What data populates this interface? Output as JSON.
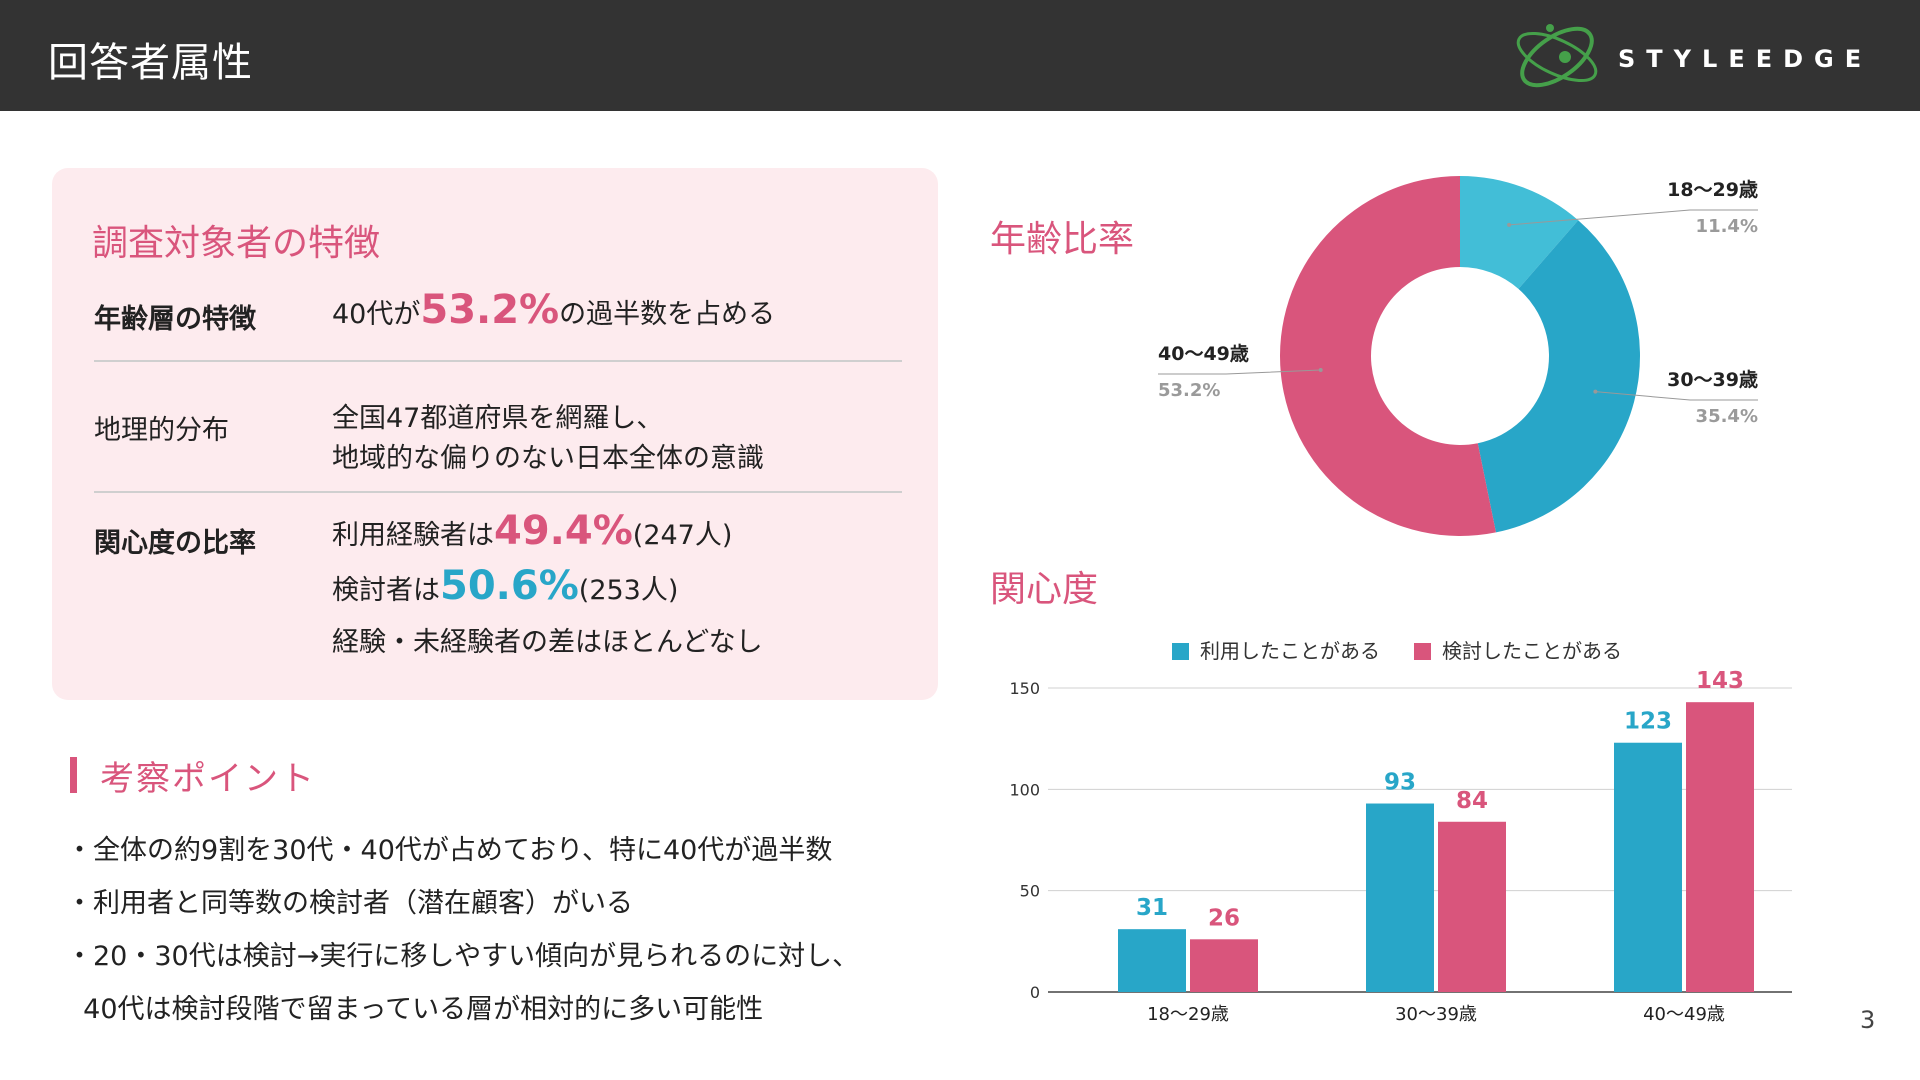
{
  "header": {
    "title": "回答者属性",
    "brand": "STYLEEDGE"
  },
  "card": {
    "title": "調査対象者の特徴",
    "rows": [
      {
        "label": "年齢層の特徴",
        "pre": "40代が",
        "highlight": "53.2%",
        "post": "の過半数を占める"
      },
      {
        "label": "地理的分布",
        "line1": "全国47都道府県を網羅し、",
        "line2": "地域的な偏りのない日本全体の意識"
      },
      {
        "label": "関心度の比率",
        "l1_pre": "利用経験者は",
        "l1_highlight": "49.4%",
        "l1_post": "(247人)",
        "l2_pre": "検討者は",
        "l2_highlight": "50.6%",
        "l2_post": "(253人)",
        "l3": "経験・未経験者の差はほとんどなし"
      }
    ]
  },
  "insights": {
    "title": "考察ポイント",
    "points": [
      "・全体の約9割を30代・40代が占めており、特に40代が過半数",
      "・利用者と同等数の検討者（潜在顧客）がいる",
      "・20・30代は検討→実行に移しやすい傾向が見られるのに対し、",
      "  40代は検討段階で留まっている層が相対的に多い可能性"
    ]
  },
  "page_number": "3",
  "colors": {
    "pink": "#d9557c",
    "blue": "#28a6c8",
    "light_blue": "#42bed7",
    "header": "#333333",
    "card": "#fdebee"
  },
  "chart_data": [
    {
      "type": "pie",
      "title": "年齢比率",
      "donut": true,
      "slices": [
        {
          "label": "18〜29歳",
          "value": 11.4,
          "display": "11.4%",
          "color": "#42bed7"
        },
        {
          "label": "30〜39歳",
          "value": 35.4,
          "display": "35.4%",
          "color": "#28a6c8"
        },
        {
          "label": "40〜49歳",
          "value": 53.2,
          "display": "53.2%",
          "color": "#d9557c"
        }
      ]
    },
    {
      "type": "bar",
      "title": "関心度",
      "categories": [
        "18〜29歳",
        "30〜39歳",
        "40〜49歳"
      ],
      "series": [
        {
          "name": "利用したことがある",
          "values": [
            31,
            93,
            123
          ],
          "color": "#28a6c8"
        },
        {
          "name": "検討したことがある",
          "values": [
            26,
            84,
            143
          ],
          "color": "#d9557c"
        }
      ],
      "ylim": [
        0,
        150
      ],
      "yticks": [
        0,
        50,
        100,
        150
      ],
      "grid": true,
      "legend": "top-center"
    }
  ]
}
